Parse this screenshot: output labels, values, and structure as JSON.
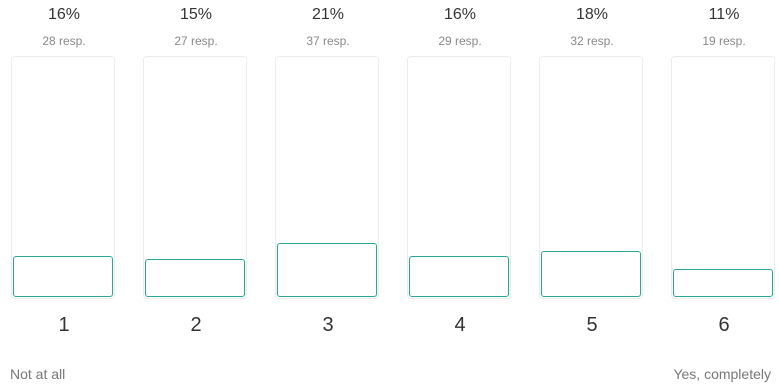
{
  "options": [
    {
      "label": "1",
      "percent_label": "16%",
      "responses_label": "28 resp.",
      "percent": 16
    },
    {
      "label": "2",
      "percent_label": "15%",
      "responses_label": "27 resp.",
      "percent": 15
    },
    {
      "label": "3",
      "percent_label": "21%",
      "responses_label": "37 resp.",
      "percent": 21
    },
    {
      "label": "4",
      "percent_label": "16%",
      "responses_label": "29 resp.",
      "percent": 16
    },
    {
      "label": "5",
      "percent_label": "18%",
      "responses_label": "32 resp.",
      "percent": 18
    },
    {
      "label": "6",
      "percent_label": "11%",
      "responses_label": "19 resp.",
      "percent": 11
    }
  ],
  "anchors": {
    "low": "Not at all",
    "high": "Yes, completely"
  },
  "colors": {
    "accent": "#2aa79b",
    "track_border": "#ececec"
  }
}
